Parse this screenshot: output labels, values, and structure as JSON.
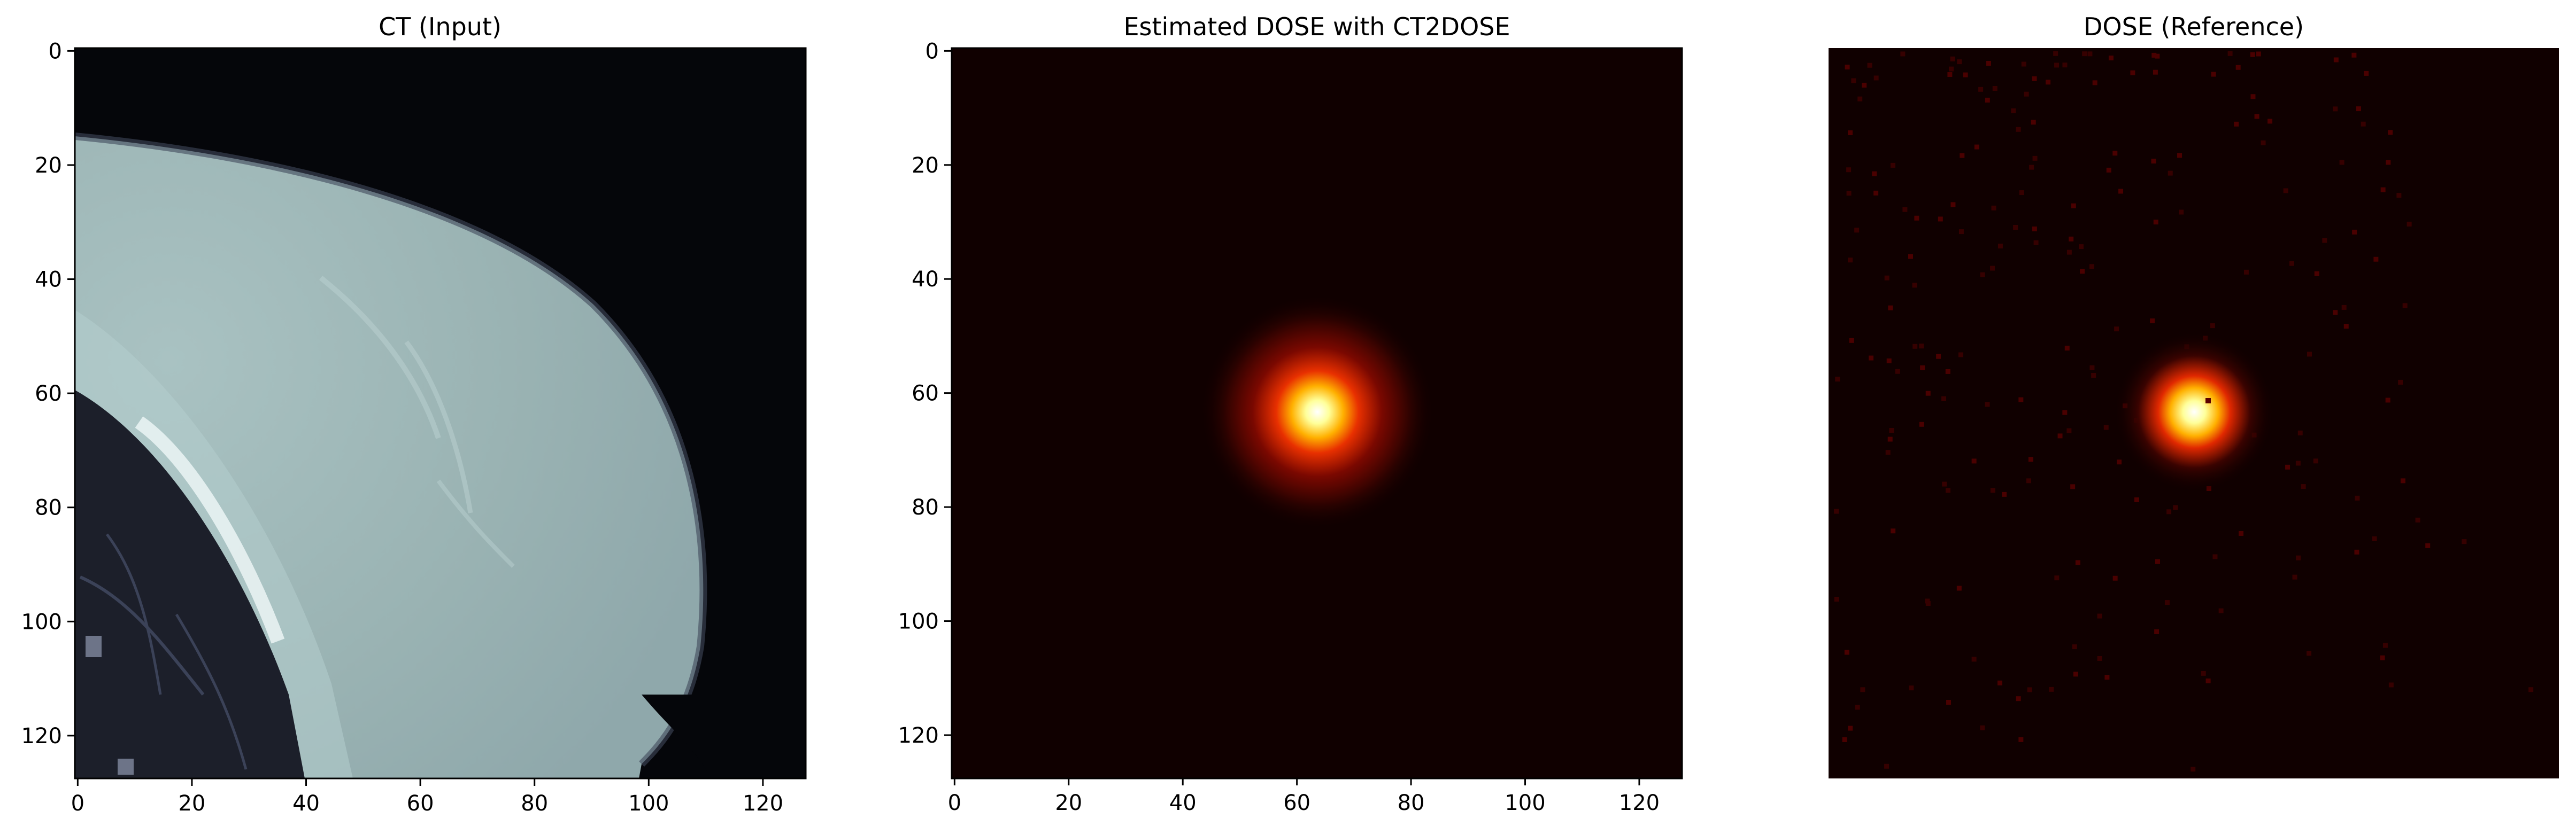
{
  "panels": [
    {
      "title": "CT (Input)",
      "x_ticks": [
        "0",
        "20",
        "40",
        "60",
        "80",
        "100",
        "120"
      ],
      "y_ticks": [
        "0",
        "20",
        "40",
        "60",
        "80",
        "100",
        "120"
      ],
      "show_axes": true
    },
    {
      "title": "Estimated DOSE with CT2DOSE",
      "x_ticks": [
        "0",
        "20",
        "40",
        "60",
        "80",
        "100",
        "120"
      ],
      "y_ticks": [
        "0",
        "20",
        "40",
        "60",
        "80",
        "100",
        "120"
      ],
      "show_axes": true
    },
    {
      "title": "DOSE (Reference)",
      "x_ticks": [],
      "y_ticks": [],
      "show_axes": false
    }
  ],
  "colors": {
    "ct_background": "#05060a",
    "ct_tissue": "#9bb3b3",
    "ct_lung": "#1c1f2a",
    "dose_background": "#100000",
    "dose_glow": "#ff2a00",
    "dose_core": "#ffffff"
  }
}
